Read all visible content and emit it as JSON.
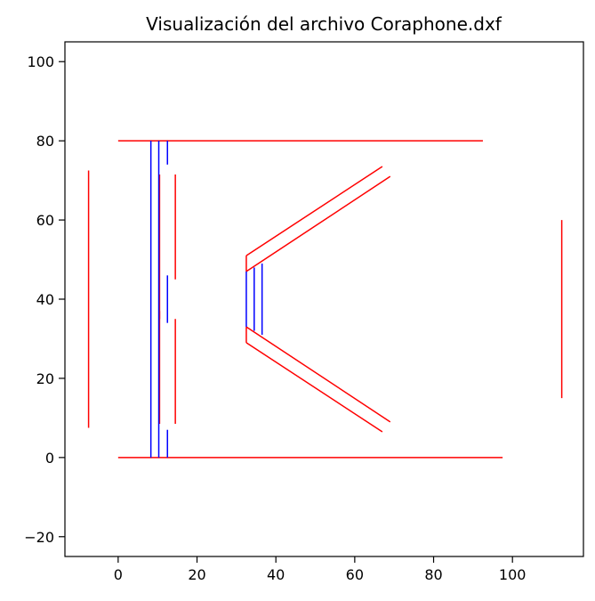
{
  "chart_data": {
    "type": "line",
    "title": "Visualización del archivo Coraphone.dxf",
    "xlabel": "",
    "ylabel": "",
    "xlim": [
      -13.5,
      118
    ],
    "ylim": [
      -25,
      105
    ],
    "x_ticks": [
      0,
      20,
      40,
      60,
      80,
      100
    ],
    "y_ticks": [
      -20,
      0,
      20,
      40,
      60,
      80,
      100
    ],
    "grid": false,
    "colors": {
      "red": "#ff0000",
      "blue": "#0000ff"
    },
    "series": [
      {
        "color": "red",
        "values": [
          [
            0,
            80
          ],
          [
            92.5,
            80
          ]
        ]
      },
      {
        "color": "red",
        "values": [
          [
            0,
            0
          ],
          [
            97.5,
            0
          ]
        ]
      },
      {
        "color": "red",
        "values": [
          [
            -7.5,
            72.5
          ],
          [
            -7.5,
            7.5
          ]
        ]
      },
      {
        "color": "red",
        "values": [
          [
            112.5,
            60
          ],
          [
            112.5,
            15
          ]
        ]
      },
      {
        "color": "red",
        "values": [
          [
            10.5,
            71.5
          ],
          [
            10.5,
            35
          ]
        ]
      },
      {
        "color": "red",
        "values": [
          [
            14.5,
            71.5
          ],
          [
            14.5,
            45
          ]
        ]
      },
      {
        "color": "red",
        "values": [
          [
            10.5,
            37
          ],
          [
            10.5,
            8.5
          ]
        ]
      },
      {
        "color": "red",
        "values": [
          [
            14.5,
            35
          ],
          [
            14.5,
            8.5
          ]
        ]
      },
      {
        "color": "red",
        "values": [
          [
            32.5,
            51
          ],
          [
            67,
            73.5
          ]
        ]
      },
      {
        "color": "red",
        "values": [
          [
            32.5,
            47
          ],
          [
            69,
            71
          ]
        ]
      },
      {
        "color": "red",
        "values": [
          [
            32.5,
            51
          ],
          [
            32.5,
            47
          ]
        ]
      },
      {
        "color": "red",
        "values": [
          [
            32.5,
            33
          ],
          [
            69,
            9
          ]
        ]
      },
      {
        "color": "red",
        "values": [
          [
            32.5,
            29
          ],
          [
            67,
            6.5
          ]
        ]
      },
      {
        "color": "red",
        "values": [
          [
            32.5,
            33
          ],
          [
            32.5,
            29
          ]
        ]
      },
      {
        "color": "blue",
        "values": [
          [
            8.3,
            80
          ],
          [
            8.3,
            0
          ]
        ]
      },
      {
        "color": "blue",
        "values": [
          [
            10.3,
            80
          ],
          [
            10.3,
            0
          ]
        ]
      },
      {
        "color": "blue",
        "values": [
          [
            12.5,
            80
          ],
          [
            12.5,
            74
          ]
        ]
      },
      {
        "color": "blue",
        "values": [
          [
            12.5,
            46
          ],
          [
            12.5,
            34
          ]
        ]
      },
      {
        "color": "blue",
        "values": [
          [
            12.5,
            7
          ],
          [
            12.5,
            0
          ]
        ]
      },
      {
        "color": "blue",
        "values": [
          [
            32.5,
            47
          ],
          [
            32.5,
            33
          ]
        ]
      },
      {
        "color": "blue",
        "values": [
          [
            34.5,
            48
          ],
          [
            34.5,
            32
          ]
        ]
      },
      {
        "color": "blue",
        "values": [
          [
            36.5,
            49
          ],
          [
            36.5,
            31
          ]
        ]
      }
    ]
  }
}
